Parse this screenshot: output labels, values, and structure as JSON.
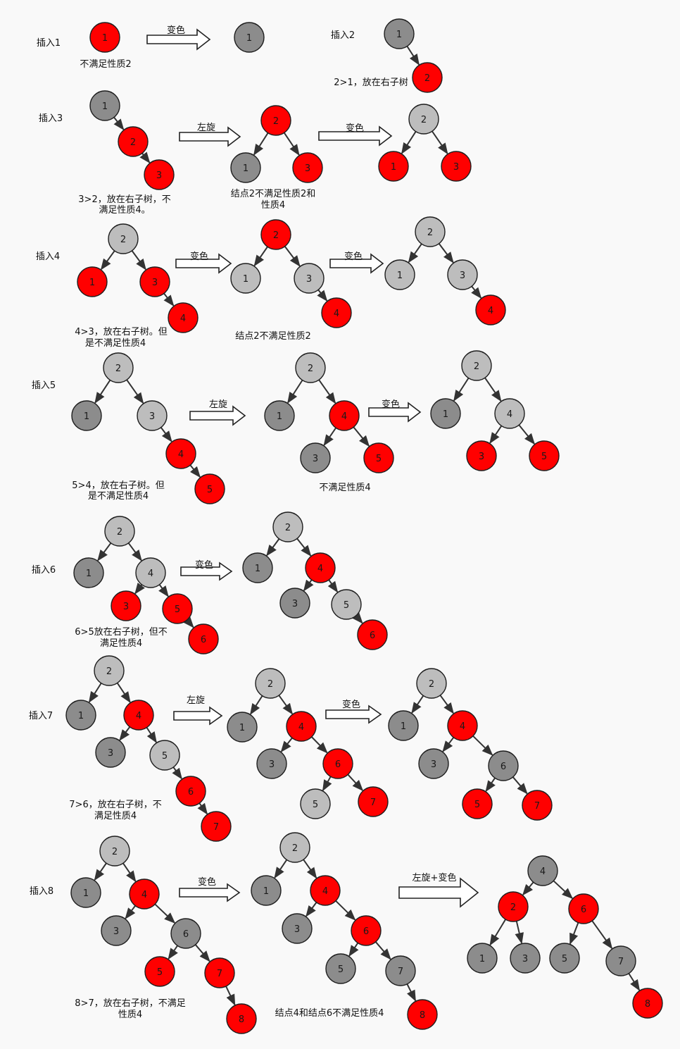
{
  "colors": {
    "red": "#ff0000",
    "dark": "#8c8c8c",
    "light": "#bdbdbd",
    "stroke": "#1e1e1e"
  },
  "sections": [
    {
      "id": "s1",
      "title": "插入1",
      "notes": [
        "不满足性质2"
      ],
      "arrows": [
        "变色"
      ],
      "trees": [
        {
          "nodes": [
            {
              "v": "1",
              "c": "red"
            }
          ],
          "edges": []
        },
        {
          "nodes": [
            {
              "v": "1",
              "c": "dark"
            }
          ],
          "edges": []
        }
      ]
    },
    {
      "id": "s2",
      "title": "插入2",
      "notes": [
        "2>1，放在右子树"
      ],
      "arrows": [],
      "trees": [
        {
          "nodes": [
            {
              "v": "1",
              "c": "dark"
            },
            {
              "v": "2",
              "c": "red"
            }
          ],
          "edges": [
            [
              0,
              1
            ]
          ]
        }
      ]
    },
    {
      "id": "s3",
      "title": "插入3",
      "notes": [
        "3>2，放在右子树，不",
        "满足性质4。",
        "结点2不满足性质2和",
        "性质4"
      ],
      "arrows": [
        "左旋",
        "变色"
      ],
      "trees": [
        {
          "nodes": [
            {
              "v": "1",
              "c": "dark"
            },
            {
              "v": "2",
              "c": "red"
            },
            {
              "v": "3",
              "c": "red"
            }
          ],
          "edges": [
            [
              0,
              1
            ],
            [
              1,
              2
            ]
          ]
        },
        {
          "nodes": [
            {
              "v": "2",
              "c": "red"
            },
            {
              "v": "1",
              "c": "dark"
            },
            {
              "v": "3",
              "c": "red"
            }
          ],
          "edges": [
            [
              0,
              1
            ],
            [
              0,
              2
            ]
          ]
        },
        {
          "nodes": [
            {
              "v": "2",
              "c": "light"
            },
            {
              "v": "1",
              "c": "red"
            },
            {
              "v": "3",
              "c": "red"
            }
          ],
          "edges": [
            [
              0,
              1
            ],
            [
              0,
              2
            ]
          ]
        }
      ]
    },
    {
      "id": "s4",
      "title": "插入4",
      "notes": [
        "4>3，放在右子树。但",
        "是不满足性质4",
        "结点2不满足性质2"
      ],
      "arrows": [
        "变色",
        "变色"
      ],
      "trees": [
        {
          "nodes": [
            {
              "v": "2",
              "c": "light"
            },
            {
              "v": "1",
              "c": "red"
            },
            {
              "v": "3",
              "c": "red"
            },
            {
              "v": "4",
              "c": "red"
            }
          ],
          "edges": [
            [
              0,
              1
            ],
            [
              0,
              2
            ],
            [
              2,
              3
            ]
          ]
        },
        {
          "nodes": [
            {
              "v": "2",
              "c": "red"
            },
            {
              "v": "1",
              "c": "light"
            },
            {
              "v": "3",
              "c": "light"
            },
            {
              "v": "4",
              "c": "red"
            }
          ],
          "edges": [
            [
              0,
              1
            ],
            [
              0,
              2
            ],
            [
              2,
              3
            ]
          ]
        },
        {
          "nodes": [
            {
              "v": "2",
              "c": "light"
            },
            {
              "v": "1",
              "c": "light"
            },
            {
              "v": "3",
              "c": "light"
            },
            {
              "v": "4",
              "c": "red"
            }
          ],
          "edges": [
            [
              0,
              1
            ],
            [
              0,
              2
            ],
            [
              2,
              3
            ]
          ]
        }
      ]
    },
    {
      "id": "s5",
      "title": "插入5",
      "notes": [
        "5>4，放在右子树。但",
        "是不满足性质4",
        "不满足性质4"
      ],
      "arrows": [
        "左旋",
        "变色"
      ],
      "trees": [
        {
          "nodes": [
            {
              "v": "2",
              "c": "light"
            },
            {
              "v": "1",
              "c": "dark"
            },
            {
              "v": "3",
              "c": "light"
            },
            {
              "v": "4",
              "c": "red"
            },
            {
              "v": "5",
              "c": "red"
            }
          ],
          "edges": [
            [
              0,
              1
            ],
            [
              0,
              2
            ],
            [
              2,
              3
            ],
            [
              3,
              4
            ]
          ]
        },
        {
          "nodes": [
            {
              "v": "2",
              "c": "light"
            },
            {
              "v": "1",
              "c": "dark"
            },
            {
              "v": "4",
              "c": "red"
            },
            {
              "v": "3",
              "c": "dark"
            },
            {
              "v": "5",
              "c": "red"
            }
          ],
          "edges": [
            [
              0,
              1
            ],
            [
              0,
              2
            ],
            [
              2,
              3
            ],
            [
              2,
              4
            ]
          ]
        },
        {
          "nodes": [
            {
              "v": "2",
              "c": "light"
            },
            {
              "v": "1",
              "c": "dark"
            },
            {
              "v": "4",
              "c": "light"
            },
            {
              "v": "3",
              "c": "red"
            },
            {
              "v": "5",
              "c": "red"
            }
          ],
          "edges": [
            [
              0,
              1
            ],
            [
              0,
              2
            ],
            [
              2,
              3
            ],
            [
              2,
              4
            ]
          ]
        }
      ]
    },
    {
      "id": "s6",
      "title": "插入6",
      "notes": [
        "6>5放在右子树，但不",
        "满足性质4"
      ],
      "arrows": [
        "变色"
      ],
      "trees": [
        {
          "nodes": [
            {
              "v": "2",
              "c": "light"
            },
            {
              "v": "1",
              "c": "dark"
            },
            {
              "v": "4",
              "c": "light"
            },
            {
              "v": "3",
              "c": "red"
            },
            {
              "v": "5",
              "c": "red"
            },
            {
              "v": "6",
              "c": "red"
            }
          ],
          "edges": [
            [
              0,
              1
            ],
            [
              0,
              2
            ],
            [
              2,
              3
            ],
            [
              2,
              4
            ],
            [
              4,
              5
            ]
          ]
        },
        {
          "nodes": [
            {
              "v": "2",
              "c": "light"
            },
            {
              "v": "1",
              "c": "dark"
            },
            {
              "v": "4",
              "c": "red"
            },
            {
              "v": "3",
              "c": "dark"
            },
            {
              "v": "5",
              "c": "light"
            },
            {
              "v": "6",
              "c": "red"
            }
          ],
          "edges": [
            [
              0,
              1
            ],
            [
              0,
              2
            ],
            [
              2,
              3
            ],
            [
              2,
              4
            ],
            [
              4,
              5
            ]
          ]
        }
      ]
    },
    {
      "id": "s7",
      "title": "插入7",
      "notes": [
        "7>6，放在右子树，不",
        "满足性质4"
      ],
      "arrows": [
        "左旋",
        "变色"
      ],
      "trees": [
        {
          "nodes": [
            {
              "v": "2",
              "c": "light"
            },
            {
              "v": "1",
              "c": "dark"
            },
            {
              "v": "4",
              "c": "red"
            },
            {
              "v": "3",
              "c": "dark"
            },
            {
              "v": "5",
              "c": "light"
            },
            {
              "v": "6",
              "c": "red"
            },
            {
              "v": "7",
              "c": "red"
            }
          ],
          "edges": [
            [
              0,
              1
            ],
            [
              0,
              2
            ],
            [
              2,
              3
            ],
            [
              2,
              4
            ],
            [
              4,
              5
            ],
            [
              5,
              6
            ]
          ]
        },
        {
          "nodes": [
            {
              "v": "2",
              "c": "light"
            },
            {
              "v": "1",
              "c": "dark"
            },
            {
              "v": "4",
              "c": "red"
            },
            {
              "v": "3",
              "c": "dark"
            },
            {
              "v": "6",
              "c": "red"
            },
            {
              "v": "5",
              "c": "light"
            },
            {
              "v": "7",
              "c": "red"
            }
          ],
          "edges": [
            [
              0,
              1
            ],
            [
              0,
              2
            ],
            [
              2,
              3
            ],
            [
              2,
              4
            ],
            [
              4,
              5
            ],
            [
              4,
              6
            ]
          ]
        },
        {
          "nodes": [
            {
              "v": "2",
              "c": "light"
            },
            {
              "v": "1",
              "c": "dark"
            },
            {
              "v": "4",
              "c": "red"
            },
            {
              "v": "3",
              "c": "dark"
            },
            {
              "v": "6",
              "c": "dark"
            },
            {
              "v": "5",
              "c": "red"
            },
            {
              "v": "7",
              "c": "red"
            }
          ],
          "edges": [
            [
              0,
              1
            ],
            [
              0,
              2
            ],
            [
              2,
              3
            ],
            [
              2,
              4
            ],
            [
              4,
              5
            ],
            [
              4,
              6
            ]
          ]
        }
      ]
    },
    {
      "id": "s8",
      "title": "插入8",
      "notes": [
        "8>7，放在右子树，不满足",
        "性质4",
        "结点4和结点6不满足性质4"
      ],
      "arrows": [
        "变色",
        "左旋+变色"
      ],
      "trees": [
        {
          "nodes": [
            {
              "v": "2",
              "c": "light"
            },
            {
              "v": "1",
              "c": "dark"
            },
            {
              "v": "4",
              "c": "red"
            },
            {
              "v": "3",
              "c": "dark"
            },
            {
              "v": "6",
              "c": "dark"
            },
            {
              "v": "5",
              "c": "red"
            },
            {
              "v": "7",
              "c": "red"
            },
            {
              "v": "8",
              "c": "red"
            }
          ],
          "edges": [
            [
              0,
              1
            ],
            [
              0,
              2
            ],
            [
              2,
              3
            ],
            [
              2,
              4
            ],
            [
              4,
              5
            ],
            [
              4,
              6
            ],
            [
              6,
              7
            ]
          ]
        },
        {
          "nodes": [
            {
              "v": "2",
              "c": "light"
            },
            {
              "v": "1",
              "c": "dark"
            },
            {
              "v": "4",
              "c": "red"
            },
            {
              "v": "3",
              "c": "dark"
            },
            {
              "v": "6",
              "c": "red"
            },
            {
              "v": "5",
              "c": "dark"
            },
            {
              "v": "7",
              "c": "dark"
            },
            {
              "v": "8",
              "c": "red"
            }
          ],
          "edges": [
            [
              0,
              1
            ],
            [
              0,
              2
            ],
            [
              2,
              3
            ],
            [
              2,
              4
            ],
            [
              4,
              5
            ],
            [
              4,
              6
            ],
            [
              6,
              7
            ]
          ]
        },
        {
          "nodes": [
            {
              "v": "4",
              "c": "dark"
            },
            {
              "v": "2",
              "c": "red"
            },
            {
              "v": "6",
              "c": "red"
            },
            {
              "v": "1",
              "c": "dark"
            },
            {
              "v": "3",
              "c": "dark"
            },
            {
              "v": "5",
              "c": "dark"
            },
            {
              "v": "7",
              "c": "dark"
            },
            {
              "v": "8",
              "c": "red"
            }
          ],
          "edges": [
            [
              0,
              1
            ],
            [
              0,
              2
            ],
            [
              1,
              3
            ],
            [
              1,
              4
            ],
            [
              2,
              5
            ],
            [
              2,
              6
            ],
            [
              6,
              7
            ]
          ]
        }
      ]
    }
  ]
}
